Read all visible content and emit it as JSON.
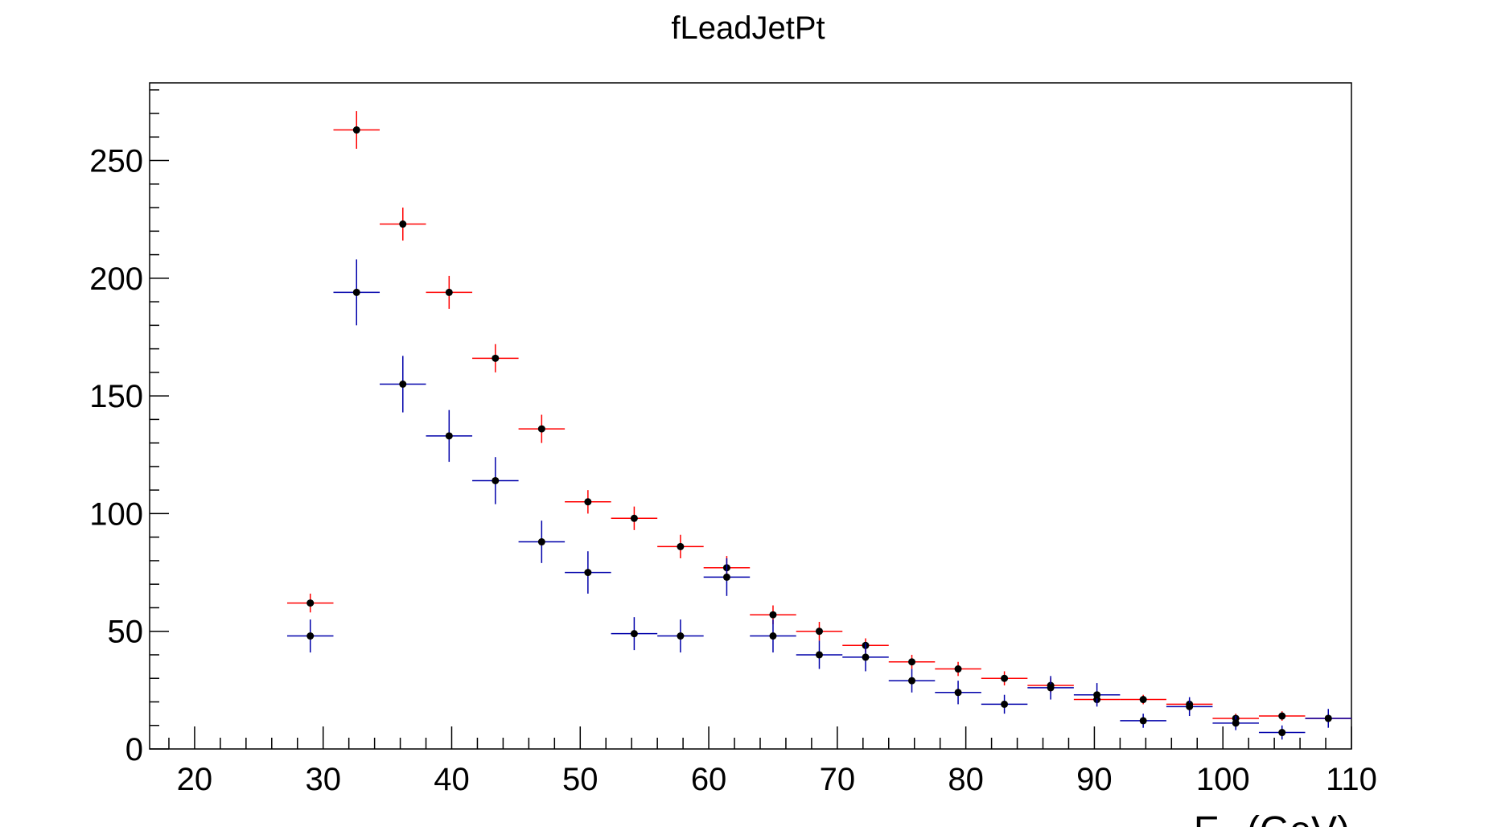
{
  "chart_data": {
    "type": "scatter",
    "title": "fLeadJetPt",
    "xlabel": "E_T (GeV)",
    "ylabel": "",
    "xlim": [
      16.5,
      110
    ],
    "ylim": [
      0,
      283
    ],
    "xticks": [
      20,
      30,
      40,
      50,
      60,
      70,
      80,
      90,
      100,
      110
    ],
    "yticks": [
      0,
      50,
      100,
      150,
      200,
      250
    ],
    "bin_width": 3.6,
    "grid": false,
    "series": [
      {
        "color": "#ff0000",
        "x": [
          29.0,
          32.6,
          36.2,
          39.8,
          43.4,
          47.0,
          50.6,
          54.2,
          57.8,
          61.4,
          65.0,
          68.6,
          72.2,
          75.8,
          79.4,
          83.0,
          86.6,
          90.2,
          93.8,
          97.4,
          101.0,
          104.6,
          108.2
        ],
        "y": [
          62,
          263,
          223,
          194,
          166,
          136,
          105,
          98,
          86,
          77,
          57,
          50,
          44,
          37,
          34,
          30,
          27,
          21,
          21,
          19,
          13,
          14,
          13
        ],
        "err": [
          4,
          8,
          7,
          7,
          6,
          6,
          5,
          5,
          5,
          5,
          4,
          4,
          3,
          3,
          3,
          3,
          3,
          2,
          2,
          2,
          2,
          2,
          2
        ]
      },
      {
        "color": "#0000aa",
        "x": [
          29.0,
          32.6,
          36.2,
          39.8,
          43.4,
          47.0,
          50.6,
          54.2,
          57.8,
          61.4,
          65.0,
          68.6,
          72.2,
          75.8,
          79.4,
          83.0,
          86.6,
          90.2,
          93.8,
          97.4,
          101.0,
          104.6,
          108.2
        ],
        "y": [
          48,
          194,
          155,
          133,
          114,
          88,
          75,
          49,
          48,
          73,
          48,
          40,
          39,
          29,
          24,
          19,
          26,
          23,
          12,
          18,
          11,
          7,
          13
        ],
        "err": [
          7,
          14,
          12,
          11,
          10,
          9,
          9,
          7,
          7,
          8,
          7,
          6,
          6,
          5,
          5,
          4,
          5,
          5,
          3,
          4,
          3,
          3,
          4
        ]
      }
    ]
  }
}
